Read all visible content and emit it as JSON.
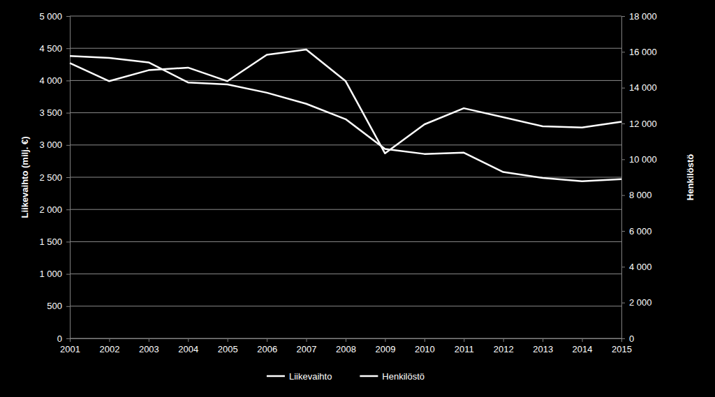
{
  "chart_data": {
    "type": "line",
    "y_label": "Liikevaihto (milj. €)",
    "y2_label": "Henkilöstö",
    "categories": [
      "2001",
      "2002",
      "2003",
      "2004",
      "2005",
      "2006",
      "2007",
      "2008",
      "2009",
      "2010",
      "2011",
      "2012",
      "2013",
      "2014",
      "2015"
    ],
    "series": [
      {
        "name": "Liikevaihto",
        "color": "#ffffff",
        "axis": "y",
        "values": [
          4270,
          3990,
          4160,
          4200,
          3990,
          4400,
          4480,
          3990,
          2870,
          3320,
          3570,
          3430,
          3290,
          3270,
          3360
        ]
      },
      {
        "name": "Henkilöstö",
        "color": "#ffffff",
        "axis": "y2",
        "values": [
          15770,
          15660,
          15410,
          14290,
          14180,
          13720,
          13100,
          12240,
          10580,
          10300,
          10370,
          9290,
          8960,
          8780,
          8890
        ]
      }
    ],
    "ylim": [
      0,
      5000
    ],
    "yticks": [
      0,
      500,
      {
        "value": 1000,
        "label": "1 000"
      },
      {
        "value": 1500,
        "label": "1 500"
      },
      {
        "value": 2000,
        "label": "2 000"
      },
      {
        "value": 2500,
        "label": "2 500"
      },
      {
        "value": 3000,
        "label": "3 000"
      },
      {
        "value": 3500,
        "label": "3 500"
      },
      {
        "value": 4000,
        "label": "4 000"
      },
      {
        "value": 4500,
        "label": "4 500"
      },
      {
        "value": 5000,
        "label": "5 000"
      }
    ],
    "y2lim": [
      0,
      18000
    ],
    "y2ticks": [
      0,
      {
        "value": 2000,
        "label": "2 000"
      },
      {
        "value": 4000,
        "label": "4 000"
      },
      {
        "value": 6000,
        "label": "6 000"
      },
      {
        "value": 8000,
        "label": "8 000"
      },
      {
        "value": 10000,
        "label": "10 000"
      },
      {
        "value": 12000,
        "label": "12 000"
      },
      {
        "value": 14000,
        "label": "14 000"
      },
      {
        "value": 16000,
        "label": "16 000"
      },
      {
        "value": 18000,
        "label": "18 000"
      }
    ],
    "grid": true,
    "legend": "bottom"
  }
}
